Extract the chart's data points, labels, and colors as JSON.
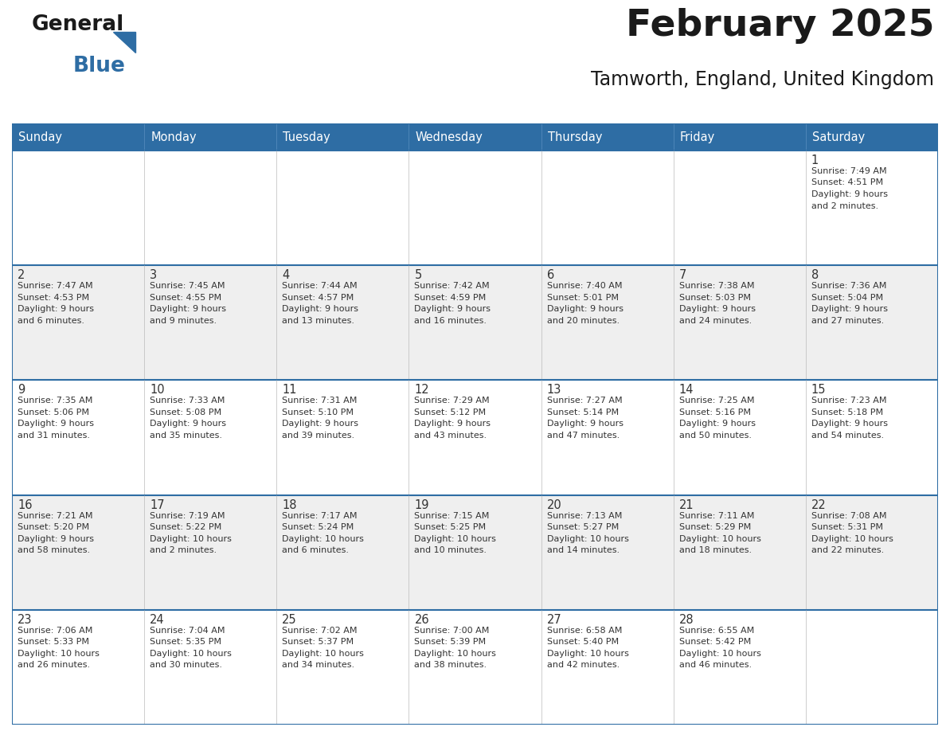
{
  "title": "February 2025",
  "subtitle": "Tamworth, England, United Kingdom",
  "header_bg": "#2E6DA4",
  "header_text_color": "#FFFFFF",
  "row_colors": [
    "#FFFFFF",
    "#EFEFEF",
    "#FFFFFF",
    "#EFEFEF",
    "#FFFFFF"
  ],
  "cell_text_color": "#333333",
  "line_color": "#2E6DA4",
  "border_color": "#CCCCCC",
  "day_headers": [
    "Sunday",
    "Monday",
    "Tuesday",
    "Wednesday",
    "Thursday",
    "Friday",
    "Saturday"
  ],
  "weeks": [
    [
      {
        "day": "",
        "info": ""
      },
      {
        "day": "",
        "info": ""
      },
      {
        "day": "",
        "info": ""
      },
      {
        "day": "",
        "info": ""
      },
      {
        "day": "",
        "info": ""
      },
      {
        "day": "",
        "info": ""
      },
      {
        "day": "1",
        "info": "Sunrise: 7:49 AM\nSunset: 4:51 PM\nDaylight: 9 hours\nand 2 minutes."
      }
    ],
    [
      {
        "day": "2",
        "info": "Sunrise: 7:47 AM\nSunset: 4:53 PM\nDaylight: 9 hours\nand 6 minutes."
      },
      {
        "day": "3",
        "info": "Sunrise: 7:45 AM\nSunset: 4:55 PM\nDaylight: 9 hours\nand 9 minutes."
      },
      {
        "day": "4",
        "info": "Sunrise: 7:44 AM\nSunset: 4:57 PM\nDaylight: 9 hours\nand 13 minutes."
      },
      {
        "day": "5",
        "info": "Sunrise: 7:42 AM\nSunset: 4:59 PM\nDaylight: 9 hours\nand 16 minutes."
      },
      {
        "day": "6",
        "info": "Sunrise: 7:40 AM\nSunset: 5:01 PM\nDaylight: 9 hours\nand 20 minutes."
      },
      {
        "day": "7",
        "info": "Sunrise: 7:38 AM\nSunset: 5:03 PM\nDaylight: 9 hours\nand 24 minutes."
      },
      {
        "day": "8",
        "info": "Sunrise: 7:36 AM\nSunset: 5:04 PM\nDaylight: 9 hours\nand 27 minutes."
      }
    ],
    [
      {
        "day": "9",
        "info": "Sunrise: 7:35 AM\nSunset: 5:06 PM\nDaylight: 9 hours\nand 31 minutes."
      },
      {
        "day": "10",
        "info": "Sunrise: 7:33 AM\nSunset: 5:08 PM\nDaylight: 9 hours\nand 35 minutes."
      },
      {
        "day": "11",
        "info": "Sunrise: 7:31 AM\nSunset: 5:10 PM\nDaylight: 9 hours\nand 39 minutes."
      },
      {
        "day": "12",
        "info": "Sunrise: 7:29 AM\nSunset: 5:12 PM\nDaylight: 9 hours\nand 43 minutes."
      },
      {
        "day": "13",
        "info": "Sunrise: 7:27 AM\nSunset: 5:14 PM\nDaylight: 9 hours\nand 47 minutes."
      },
      {
        "day": "14",
        "info": "Sunrise: 7:25 AM\nSunset: 5:16 PM\nDaylight: 9 hours\nand 50 minutes."
      },
      {
        "day": "15",
        "info": "Sunrise: 7:23 AM\nSunset: 5:18 PM\nDaylight: 9 hours\nand 54 minutes."
      }
    ],
    [
      {
        "day": "16",
        "info": "Sunrise: 7:21 AM\nSunset: 5:20 PM\nDaylight: 9 hours\nand 58 minutes."
      },
      {
        "day": "17",
        "info": "Sunrise: 7:19 AM\nSunset: 5:22 PM\nDaylight: 10 hours\nand 2 minutes."
      },
      {
        "day": "18",
        "info": "Sunrise: 7:17 AM\nSunset: 5:24 PM\nDaylight: 10 hours\nand 6 minutes."
      },
      {
        "day": "19",
        "info": "Sunrise: 7:15 AM\nSunset: 5:25 PM\nDaylight: 10 hours\nand 10 minutes."
      },
      {
        "day": "20",
        "info": "Sunrise: 7:13 AM\nSunset: 5:27 PM\nDaylight: 10 hours\nand 14 minutes."
      },
      {
        "day": "21",
        "info": "Sunrise: 7:11 AM\nSunset: 5:29 PM\nDaylight: 10 hours\nand 18 minutes."
      },
      {
        "day": "22",
        "info": "Sunrise: 7:08 AM\nSunset: 5:31 PM\nDaylight: 10 hours\nand 22 minutes."
      }
    ],
    [
      {
        "day": "23",
        "info": "Sunrise: 7:06 AM\nSunset: 5:33 PM\nDaylight: 10 hours\nand 26 minutes."
      },
      {
        "day": "24",
        "info": "Sunrise: 7:04 AM\nSunset: 5:35 PM\nDaylight: 10 hours\nand 30 minutes."
      },
      {
        "day": "25",
        "info": "Sunrise: 7:02 AM\nSunset: 5:37 PM\nDaylight: 10 hours\nand 34 minutes."
      },
      {
        "day": "26",
        "info": "Sunrise: 7:00 AM\nSunset: 5:39 PM\nDaylight: 10 hours\nand 38 minutes."
      },
      {
        "day": "27",
        "info": "Sunrise: 6:58 AM\nSunset: 5:40 PM\nDaylight: 10 hours\nand 42 minutes."
      },
      {
        "day": "28",
        "info": "Sunrise: 6:55 AM\nSunset: 5:42 PM\nDaylight: 10 hours\nand 46 minutes."
      },
      {
        "day": "",
        "info": ""
      }
    ]
  ]
}
